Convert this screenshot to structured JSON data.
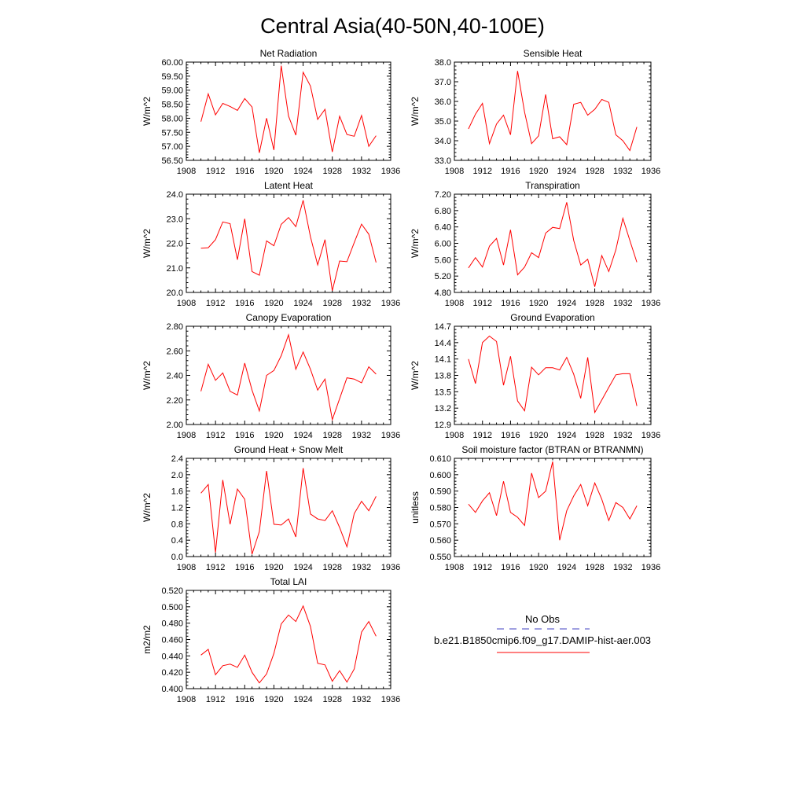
{
  "figure_title": "Central Asia(40-50N,40-100E)",
  "legend": {
    "entries": [
      {
        "label": "No Obs",
        "color": "#4040c0",
        "dash": true
      },
      {
        "label": "b.e21.B1850cmip6.f09_g17.DAMIP-hist-aer.003",
        "color": "#ff0000",
        "dash": false
      }
    ]
  },
  "chart_data": [
    {
      "type": "line",
      "title": "Net Radiation",
      "ylabel": "W/m^2",
      "xlim": [
        1908,
        1936
      ],
      "ylim": [
        56.5,
        60.0
      ],
      "xticks": [
        1908,
        1912,
        1916,
        1920,
        1924,
        1928,
        1932,
        1936
      ],
      "xticklabels": [
        "1908",
        "1912",
        "1916",
        "1920",
        "1924",
        "1928",
        "1932",
        "1936"
      ],
      "yticks": [
        56.5,
        57.0,
        57.5,
        58.0,
        58.5,
        59.0,
        59.5,
        60.0
      ],
      "yticklabels": [
        "56.50",
        "57.00",
        "57.50",
        "58.00",
        "58.50",
        "59.00",
        "59.50",
        "60.00"
      ],
      "x": [
        1910,
        1911,
        1912,
        1913,
        1914,
        1915,
        1916,
        1917,
        1918,
        1919,
        1920,
        1921,
        1922,
        1923,
        1924,
        1925,
        1926,
        1927,
        1928,
        1929,
        1930,
        1931,
        1932,
        1933,
        1934
      ],
      "series": [
        {
          "color": "#ff0000",
          "values": [
            57.88,
            58.87,
            58.12,
            58.53,
            58.42,
            58.28,
            58.7,
            58.4,
            56.77,
            58.0,
            56.87,
            59.87,
            58.08,
            57.4,
            59.64,
            59.15,
            57.96,
            58.32,
            56.8,
            58.07,
            57.42,
            57.36,
            58.1,
            57.0,
            57.38
          ]
        }
      ]
    },
    {
      "type": "line",
      "title": "Sensible Heat",
      "ylabel": "W/m^2",
      "xlim": [
        1908,
        1936
      ],
      "ylim": [
        33.0,
        38.0
      ],
      "xticks": [
        1908,
        1912,
        1916,
        1920,
        1924,
        1928,
        1932,
        1936
      ],
      "xticklabels": [
        "1908",
        "1912",
        "1916",
        "1920",
        "1924",
        "1928",
        "1932",
        "1936"
      ],
      "yticks": [
        33.0,
        34.0,
        35.0,
        36.0,
        37.0,
        38.0
      ],
      "yticklabels": [
        "33.0",
        "34.0",
        "35.0",
        "36.0",
        "37.0",
        "38.0"
      ],
      "x": [
        1910,
        1911,
        1912,
        1913,
        1914,
        1915,
        1916,
        1917,
        1918,
        1919,
        1920,
        1921,
        1922,
        1923,
        1924,
        1925,
        1926,
        1927,
        1928,
        1929,
        1930,
        1931,
        1932,
        1933,
        1934
      ],
      "series": [
        {
          "color": "#ff0000",
          "values": [
            34.6,
            35.35,
            35.9,
            33.85,
            34.85,
            35.3,
            34.3,
            37.55,
            35.45,
            33.85,
            34.25,
            36.35,
            34.1,
            34.2,
            33.8,
            35.85,
            35.95,
            35.3,
            35.6,
            36.1,
            35.95,
            34.3,
            34.0,
            33.5,
            34.7
          ]
        }
      ]
    },
    {
      "type": "line",
      "title": "Latent Heat",
      "ylabel": "W/m^2",
      "xlim": [
        1908,
        1936
      ],
      "ylim": [
        20.0,
        24.0
      ],
      "xticks": [
        1908,
        1912,
        1916,
        1920,
        1924,
        1928,
        1932,
        1936
      ],
      "xticklabels": [
        "1908",
        "1912",
        "1916",
        "1920",
        "1924",
        "1928",
        "1932",
        "1936"
      ],
      "yticks": [
        20.0,
        21.0,
        22.0,
        23.0,
        24.0
      ],
      "yticklabels": [
        "20.0",
        "21.0",
        "22.0",
        "23.0",
        "24.0"
      ],
      "x": [
        1910,
        1911,
        1912,
        1913,
        1914,
        1915,
        1916,
        1917,
        1918,
        1919,
        1920,
        1921,
        1922,
        1923,
        1924,
        1925,
        1926,
        1927,
        1928,
        1929,
        1930,
        1931,
        1932,
        1933,
        1934
      ],
      "series": [
        {
          "color": "#ff0000",
          "values": [
            21.8,
            21.82,
            22.15,
            22.87,
            22.8,
            21.33,
            23.0,
            20.85,
            20.7,
            22.1,
            21.9,
            22.77,
            23.05,
            22.68,
            23.75,
            22.27,
            21.12,
            22.15,
            20.07,
            21.28,
            21.25,
            22.03,
            22.78,
            22.37,
            21.22
          ]
        }
      ]
    },
    {
      "type": "line",
      "title": "Transpiration",
      "ylabel": "W/m^2",
      "xlim": [
        1908,
        1936
      ],
      "ylim": [
        4.8,
        7.2
      ],
      "xticks": [
        1908,
        1912,
        1916,
        1920,
        1924,
        1928,
        1932,
        1936
      ],
      "xticklabels": [
        "1908",
        "1912",
        "1916",
        "1920",
        "1924",
        "1928",
        "1932",
        "1936"
      ],
      "yticks": [
        4.8,
        5.2,
        5.6,
        6.0,
        6.4,
        6.8,
        7.2
      ],
      "yticklabels": [
        "4.80",
        "5.20",
        "5.60",
        "6.00",
        "6.40",
        "6.80",
        "7.20"
      ],
      "x": [
        1910,
        1911,
        1912,
        1913,
        1914,
        1915,
        1916,
        1917,
        1918,
        1919,
        1920,
        1921,
        1922,
        1923,
        1924,
        1925,
        1926,
        1927,
        1928,
        1929,
        1930,
        1931,
        1932,
        1933,
        1934
      ],
      "series": [
        {
          "color": "#ff0000",
          "values": [
            5.4,
            5.65,
            5.42,
            5.93,
            6.12,
            5.47,
            6.33,
            5.23,
            5.42,
            5.77,
            5.65,
            6.25,
            6.39,
            6.36,
            7.0,
            6.07,
            5.47,
            5.61,
            4.94,
            5.7,
            5.31,
            5.84,
            6.61,
            6.07,
            5.54
          ]
        }
      ]
    },
    {
      "type": "line",
      "title": "Canopy Evaporation",
      "ylabel": "W/m^2",
      "xlim": [
        1908,
        1936
      ],
      "ylim": [
        2.0,
        2.8
      ],
      "xticks": [
        1908,
        1912,
        1916,
        1920,
        1924,
        1928,
        1932,
        1936
      ],
      "xticklabels": [
        "1908",
        "1912",
        "1916",
        "1920",
        "1924",
        "1928",
        "1932",
        "1936"
      ],
      "yticks": [
        2.0,
        2.2,
        2.4,
        2.6,
        2.8
      ],
      "yticklabels": [
        "2.00",
        "2.20",
        "2.40",
        "2.60",
        "2.80"
      ],
      "x": [
        1910,
        1911,
        1912,
        1913,
        1914,
        1915,
        1916,
        1917,
        1918,
        1919,
        1920,
        1921,
        1922,
        1923,
        1924,
        1925,
        1926,
        1927,
        1928,
        1929,
        1930,
        1931,
        1932,
        1933,
        1934
      ],
      "series": [
        {
          "color": "#ff0000",
          "values": [
            2.27,
            2.49,
            2.36,
            2.42,
            2.27,
            2.24,
            2.5,
            2.28,
            2.11,
            2.4,
            2.44,
            2.56,
            2.73,
            2.45,
            2.59,
            2.45,
            2.28,
            2.37,
            2.04,
            2.21,
            2.38,
            2.37,
            2.34,
            2.47,
            2.41
          ]
        }
      ]
    },
    {
      "type": "line",
      "title": "Ground Evaporation",
      "ylabel": "W/m^2",
      "xlim": [
        1908,
        1936
      ],
      "ylim": [
        12.9,
        14.7
      ],
      "xticks": [
        1908,
        1912,
        1916,
        1920,
        1924,
        1928,
        1932,
        1936
      ],
      "xticklabels": [
        "1908",
        "1912",
        "1916",
        "1920",
        "1924",
        "1928",
        "1932",
        "1936"
      ],
      "yticks": [
        12.9,
        13.2,
        13.5,
        13.8,
        14.1,
        14.4,
        14.7
      ],
      "yticklabels": [
        "12.9",
        "13.2",
        "13.5",
        "13.8",
        "14.1",
        "14.4",
        "14.7"
      ],
      "x": [
        1910,
        1911,
        1912,
        1913,
        1914,
        1915,
        1916,
        1917,
        1918,
        1919,
        1920,
        1921,
        1922,
        1923,
        1924,
        1925,
        1926,
        1927,
        1928,
        1929,
        1930,
        1931,
        1932,
        1933,
        1934
      ],
      "series": [
        {
          "color": "#ff0000",
          "values": [
            14.1,
            13.65,
            14.4,
            14.52,
            14.42,
            13.62,
            14.15,
            13.33,
            13.15,
            13.95,
            13.81,
            13.94,
            13.94,
            13.9,
            14.13,
            13.82,
            13.38,
            14.13,
            13.12,
            13.35,
            13.58,
            13.81,
            13.83,
            13.83,
            13.24
          ]
        }
      ]
    },
    {
      "type": "line",
      "title": "Ground Heat + Snow Melt",
      "ylabel": "W/m^2",
      "xlim": [
        1908,
        1936
      ],
      "ylim": [
        0.0,
        2.4
      ],
      "xticks": [
        1908,
        1912,
        1916,
        1920,
        1924,
        1928,
        1932,
        1936
      ],
      "xticklabels": [
        "1908",
        "1912",
        "1916",
        "1920",
        "1924",
        "1928",
        "1932",
        "1936"
      ],
      "yticks": [
        0.0,
        0.4,
        0.8,
        1.2,
        1.6,
        2.0,
        2.4
      ],
      "yticklabels": [
        "0.0",
        "0.4",
        "0.8",
        "1.2",
        "1.6",
        "2.0",
        "2.4"
      ],
      "x": [
        1910,
        1911,
        1912,
        1913,
        1914,
        1915,
        1916,
        1917,
        1918,
        1919,
        1920,
        1921,
        1922,
        1923,
        1924,
        1925,
        1926,
        1927,
        1928,
        1929,
        1930,
        1931,
        1932,
        1933,
        1934
      ],
      "series": [
        {
          "color": "#ff0000",
          "values": [
            1.55,
            1.76,
            0.1,
            1.87,
            0.79,
            1.65,
            1.4,
            0.06,
            0.61,
            2.09,
            0.79,
            0.77,
            0.92,
            0.48,
            2.16,
            1.04,
            0.92,
            0.88,
            1.12,
            0.71,
            0.24,
            1.05,
            1.35,
            1.12,
            1.47
          ]
        }
      ]
    },
    {
      "type": "line",
      "title": "Soil moisture factor (BTRAN or BTRANMN)",
      "ylabel": "unitless",
      "xlim": [
        1908,
        1936
      ],
      "ylim": [
        0.55,
        0.61
      ],
      "xticks": [
        1908,
        1912,
        1916,
        1920,
        1924,
        1928,
        1932,
        1936
      ],
      "xticklabels": [
        "1908",
        "1912",
        "1916",
        "1920",
        "1924",
        "1928",
        "1932",
        "1936"
      ],
      "yticks": [
        0.55,
        0.56,
        0.57,
        0.58,
        0.59,
        0.6,
        0.61
      ],
      "yticklabels": [
        "0.550",
        "0.560",
        "0.570",
        "0.580",
        "0.590",
        "0.600",
        "0.610"
      ],
      "x": [
        1910,
        1911,
        1912,
        1913,
        1914,
        1915,
        1916,
        1917,
        1918,
        1919,
        1920,
        1921,
        1922,
        1923,
        1924,
        1925,
        1926,
        1927,
        1928,
        1929,
        1930,
        1931,
        1932,
        1933,
        1934
      ],
      "series": [
        {
          "color": "#ff0000",
          "values": [
            0.582,
            0.577,
            0.584,
            0.589,
            0.575,
            0.596,
            0.577,
            0.574,
            0.569,
            0.601,
            0.586,
            0.59,
            0.608,
            0.56,
            0.578,
            0.587,
            0.594,
            0.581,
            0.595,
            0.585,
            0.572,
            0.583,
            0.58,
            0.573,
            0.581
          ]
        }
      ]
    },
    {
      "type": "line",
      "title": "Total LAI",
      "ylabel": "m2/m2",
      "xlim": [
        1908,
        1936
      ],
      "ylim": [
        0.4,
        0.52
      ],
      "xticks": [
        1908,
        1912,
        1916,
        1920,
        1924,
        1928,
        1932,
        1936
      ],
      "xticklabels": [
        "1908",
        "1912",
        "1916",
        "1920",
        "1924",
        "1928",
        "1932",
        "1936"
      ],
      "yticks": [
        0.4,
        0.42,
        0.44,
        0.46,
        0.48,
        0.5,
        0.52
      ],
      "yticklabels": [
        "0.400",
        "0.420",
        "0.440",
        "0.460",
        "0.480",
        "0.500",
        "0.520"
      ],
      "x": [
        1910,
        1911,
        1912,
        1913,
        1914,
        1915,
        1916,
        1917,
        1918,
        1919,
        1920,
        1921,
        1922,
        1923,
        1924,
        1925,
        1926,
        1927,
        1928,
        1929,
        1930,
        1931,
        1932,
        1933,
        1934
      ],
      "series": [
        {
          "color": "#ff0000",
          "values": [
            0.441,
            0.448,
            0.417,
            0.428,
            0.43,
            0.426,
            0.441,
            0.42,
            0.407,
            0.418,
            0.443,
            0.479,
            0.49,
            0.482,
            0.501,
            0.476,
            0.431,
            0.429,
            0.409,
            0.422,
            0.408,
            0.424,
            0.469,
            0.482,
            0.464
          ]
        }
      ]
    }
  ]
}
